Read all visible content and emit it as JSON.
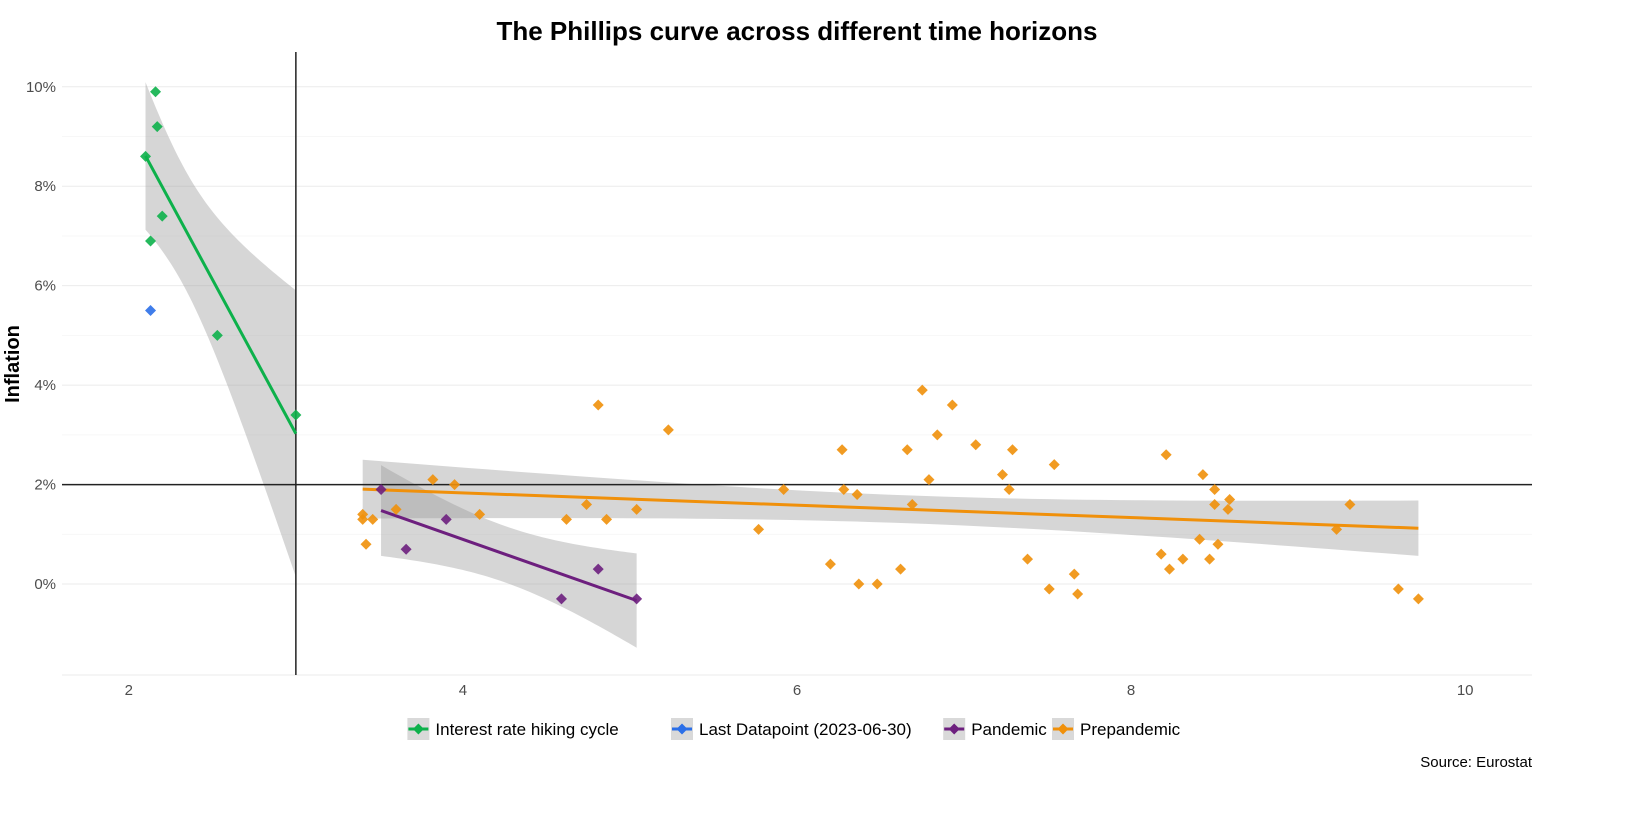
{
  "chart_data": {
    "type": "scatter",
    "title": "The Phillips curve across different time horizons",
    "xlabel": "",
    "ylabel": "Inflation",
    "caption": "Source: Eurostat",
    "xlim": [
      1.6,
      10.4
    ],
    "ylim": [
      -1.83,
      10.7
    ],
    "x_ticks": [
      2,
      4,
      6,
      8,
      10
    ],
    "x_tick_labels": [
      "2",
      "4",
      "6",
      "8",
      "10"
    ],
    "y_ticks": [
      0,
      2,
      4,
      6,
      8,
      10
    ],
    "y_tick_labels": [
      "0%",
      "2%",
      "4%",
      "6%",
      "8%",
      "10%"
    ],
    "grid": true,
    "legend_position": "bottom",
    "reference_lines": {
      "vertical_x": 3,
      "horizontal_y": 2
    },
    "series": [
      {
        "name": "Interest rate hiking cycle",
        "color": "#0db14b",
        "fit": true,
        "points": [
          [
            2.1,
            8.6
          ],
          [
            2.16,
            9.9
          ],
          [
            2.17,
            9.2
          ],
          [
            2.2,
            7.4
          ],
          [
            2.13,
            6.9
          ],
          [
            2.53,
            5.0
          ],
          [
            3.0,
            3.4
          ]
        ]
      },
      {
        "name": "Last Datapoint (2023-06-30)",
        "color": "#2b6fe8",
        "fit": false,
        "points": [
          [
            2.13,
            5.5
          ]
        ]
      },
      {
        "name": "Pandemic",
        "color": "#6d1f7e",
        "fit": true,
        "points": [
          [
            3.51,
            1.9
          ],
          [
            3.66,
            0.7
          ],
          [
            3.9,
            1.3
          ],
          [
            4.59,
            -0.3
          ],
          [
            4.81,
            0.3
          ],
          [
            5.04,
            -0.3
          ]
        ]
      },
      {
        "name": "Prepandemic",
        "color": "#f0900a",
        "fit": true,
        "points": [
          [
            3.4,
            1.4
          ],
          [
            3.4,
            1.3
          ],
          [
            3.46,
            1.3
          ],
          [
            3.42,
            0.8
          ],
          [
            3.6,
            1.5
          ],
          [
            3.82,
            2.1
          ],
          [
            3.95,
            2.0
          ],
          [
            4.1,
            1.4
          ],
          [
            4.62,
            1.3
          ],
          [
            4.74,
            1.6
          ],
          [
            4.81,
            3.6
          ],
          [
            4.86,
            1.3
          ],
          [
            5.04,
            1.5
          ],
          [
            5.23,
            3.1
          ],
          [
            5.77,
            1.1
          ],
          [
            5.92,
            1.9
          ],
          [
            6.2,
            0.4
          ],
          [
            6.27,
            2.7
          ],
          [
            6.28,
            1.9
          ],
          [
            6.36,
            1.8
          ],
          [
            6.37,
            0.0
          ],
          [
            6.48,
            0.0
          ],
          [
            6.62,
            0.3
          ],
          [
            6.66,
            2.7
          ],
          [
            6.69,
            1.6
          ],
          [
            6.75,
            3.9
          ],
          [
            6.79,
            2.1
          ],
          [
            6.84,
            3.0
          ],
          [
            6.93,
            3.6
          ],
          [
            7.07,
            2.8
          ],
          [
            7.23,
            2.2
          ],
          [
            7.27,
            1.9
          ],
          [
            7.29,
            2.7
          ],
          [
            7.38,
            0.5
          ],
          [
            7.51,
            -0.1
          ],
          [
            7.54,
            2.4
          ],
          [
            7.66,
            0.2
          ],
          [
            7.68,
            -0.2
          ],
          [
            8.18,
            0.6
          ],
          [
            8.21,
            2.6
          ],
          [
            8.23,
            0.3
          ],
          [
            8.31,
            0.5
          ],
          [
            8.41,
            0.9
          ],
          [
            8.43,
            2.2
          ],
          [
            8.47,
            0.5
          ],
          [
            8.5,
            1.9
          ],
          [
            8.5,
            1.6
          ],
          [
            8.52,
            0.8
          ],
          [
            8.58,
            1.5
          ],
          [
            8.59,
            1.7
          ],
          [
            9.23,
            1.1
          ],
          [
            9.31,
            1.6
          ],
          [
            9.6,
            -0.1
          ],
          [
            9.72,
            -0.3
          ]
        ]
      }
    ]
  }
}
